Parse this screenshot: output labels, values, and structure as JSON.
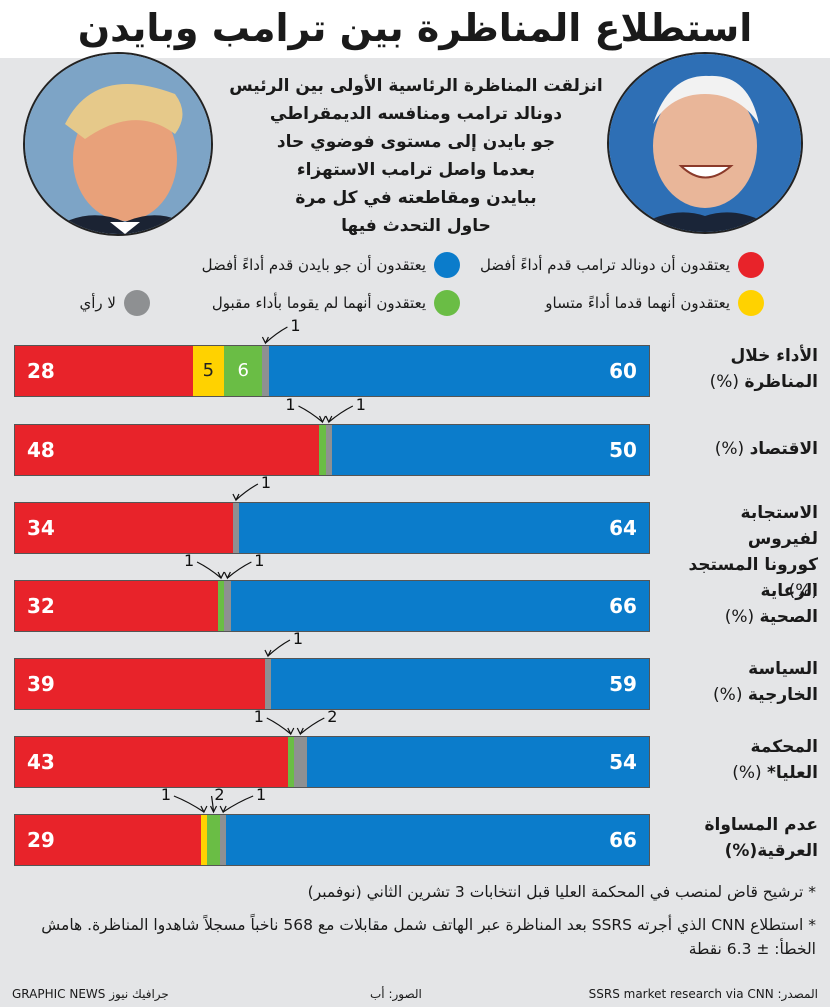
{
  "title": "استطلاع المناظرة بين ترامب وبايدن",
  "intro": [
    "انزلقت المناظرة الرئاسية الأولى بين الرئيس",
    "دونالد ترامب ومنافسه الديمقراطي",
    "جو بايدن إلى مستوى فوضوي حاد",
    "بعدما واصل ترامب الاستهزاء",
    "ببايدن ومقاطعته في كل مرة",
    "حاول التحدث فيها"
  ],
  "legend": {
    "trump": "يعتقدون أن دونالد ترامب قدم أداءً أفضل",
    "biden": "يعتقدون أن جو بايدن قدم أداءً أفضل",
    "equal": "يعتقدون أنهما قدما أداءً متساو",
    "neither": "يعتقدون أنهما لم يقوما بأداء مقبول",
    "none": "لا رأي"
  },
  "colors": {
    "trump": "#e8232a",
    "equal": "#ffd200",
    "neither": "#6abd45",
    "none": "#8e9092",
    "biden": "#0b7ccb"
  },
  "chart_data": {
    "type": "bar",
    "stacked": true,
    "orientation": "horizontal",
    "unit": "%",
    "categories": [
      {
        "label": "الأداء خلال المناظرة",
        "lines": [
          "الأداء خلال",
          "المناظرة"
        ],
        "unit": "(%)"
      },
      {
        "label": "الاقتصاد",
        "lines": [
          "الاقتصاد"
        ],
        "unit": "(%)"
      },
      {
        "label": "الاستجابة لفيروس كورونا المستجد",
        "lines": [
          "الاستجابة لفيروس",
          "كورونا المستجد"
        ],
        "unit": "(%)"
      },
      {
        "label": "الرعاية الصحية",
        "lines": [
          "الرعاية",
          "الصحية"
        ],
        "unit": "(%)"
      },
      {
        "label": "السياسة الخارجية",
        "lines": [
          "السياسة",
          "الخارجية"
        ],
        "unit": "(%)"
      },
      {
        "label": "المحكمة العليا*",
        "lines": [
          "المحكمة",
          "العليا*"
        ],
        "unit": "(%)"
      },
      {
        "label": "عدم المساواة العرقية",
        "lines": [
          "عدم المساواة",
          "العرقية(%)"
        ],
        "unit": ""
      }
    ],
    "series": [
      {
        "key": "trump",
        "values": [
          28,
          48,
          34,
          32,
          39,
          43,
          29
        ]
      },
      {
        "key": "equal",
        "values": [
          5,
          0,
          0,
          0,
          0,
          0,
          1
        ]
      },
      {
        "key": "neither",
        "values": [
          6,
          1,
          0,
          1,
          0,
          1,
          2
        ]
      },
      {
        "key": "none",
        "values": [
          1,
          1,
          1,
          1,
          1,
          2,
          1
        ]
      },
      {
        "key": "biden",
        "values": [
          60,
          50,
          64,
          66,
          59,
          54,
          66
        ]
      }
    ]
  },
  "footnotes": [
    "* ترشيح قاض لمنصب في المحكمة العليا قبل انتخابات 3 تشرين الثاني (نوفمبر)",
    "* استطلاع CNN الذي أجرته SSRS بعد المناظرة عبر الهاتف شمل مقابلات مع 568 ناخباً مسجلاً شاهدوا المناظرة. هامش الخطأ: ± 6.3 نقطة"
  ],
  "source": "المصدر: SSRS market research via CNN",
  "photos_credit": "الصور: أب",
  "brand": "GRAPHIC NEWS جرافيك نيوز",
  "photo_biden": "biden-photo",
  "photo_trump": "trump-photo"
}
